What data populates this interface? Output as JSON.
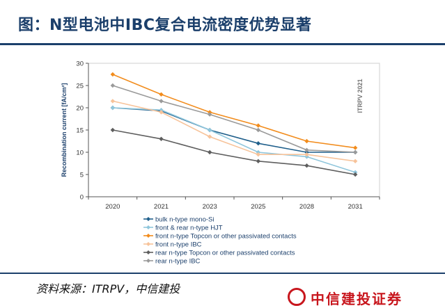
{
  "header": {
    "title": "图：N型电池中IBC复合电流密度优势显著"
  },
  "footer": {
    "source": "资料来源：ITRPV，中信建投",
    "logo_text": "中信建投证券"
  },
  "chart_data": {
    "type": "line",
    "categories": [
      "2020",
      "2021",
      "2023",
      "2025",
      "2028",
      "2031"
    ],
    "ylabel": "Recombination current [fA/cm²]",
    "ylim": [
      0,
      30
    ],
    "yticks": [
      0,
      5,
      10,
      15,
      20,
      25,
      30
    ],
    "grid": false,
    "legend_position": "bottom",
    "annotation": "ITRPV 2021",
    "series": [
      {
        "name": "bulk n-type mono-Si",
        "color": "#1f5f8b",
        "marker": "diamond",
        "values": [
          20,
          19.3,
          15,
          12,
          10,
          10
        ]
      },
      {
        "name": "front & rear n-type HJT",
        "color": "#8fc6dc",
        "marker": "diamond",
        "values": [
          20,
          19.5,
          15,
          10,
          9,
          5.5
        ]
      },
      {
        "name": "front n-type Topcon or other passivated contacts",
        "color": "#f28c1c",
        "marker": "diamond",
        "values": [
          27.5,
          23,
          19,
          16,
          12.5,
          11
        ]
      },
      {
        "name": "front n-type IBC",
        "color": "#f7c39a",
        "marker": "diamond",
        "values": [
          21.5,
          19,
          13.5,
          9.5,
          9.5,
          8
        ]
      },
      {
        "name": "rear n-type Topcon or other passivated contacts",
        "color": "#5e5e5e",
        "marker": "diamond",
        "values": [
          15,
          13,
          10,
          8,
          7,
          5
        ]
      },
      {
        "name": "rear n-type IBC",
        "color": "#9a9a9a",
        "marker": "diamond",
        "values": [
          25,
          21.5,
          18.5,
          15,
          10.5,
          10
        ]
      }
    ]
  }
}
